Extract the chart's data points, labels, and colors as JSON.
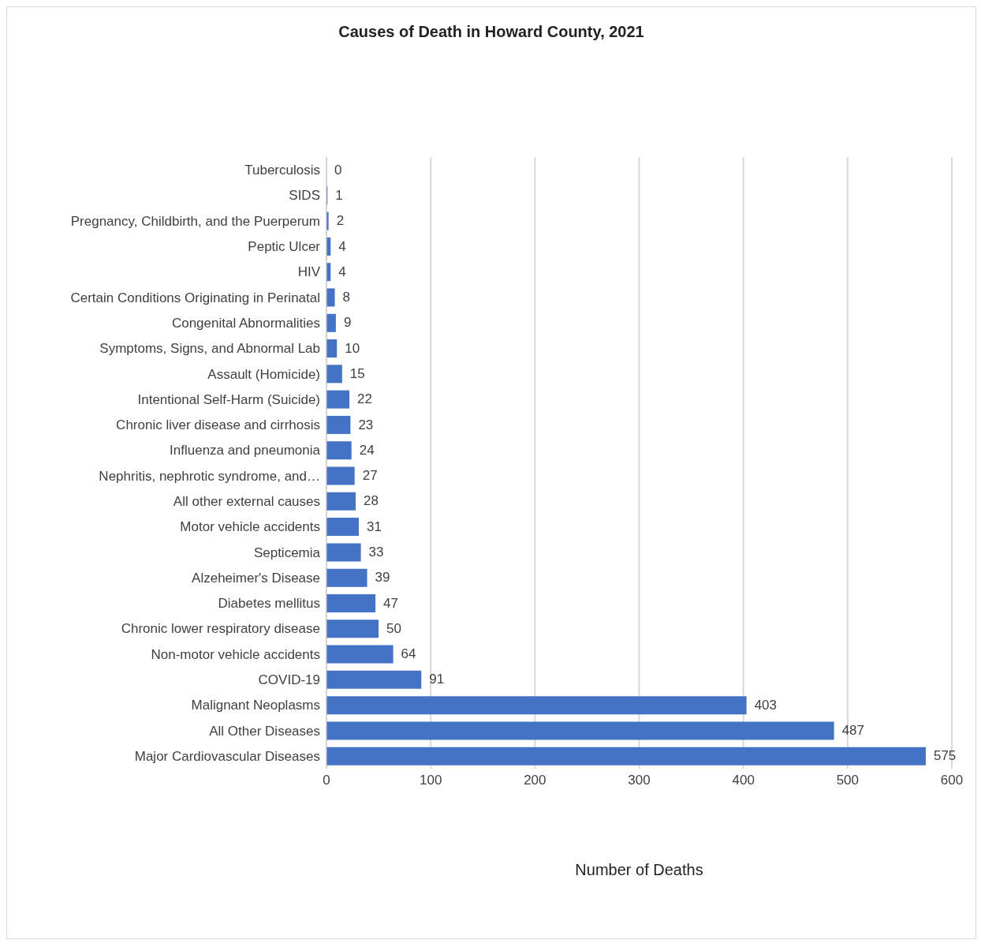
{
  "chart_data": {
    "type": "bar",
    "orientation": "horizontal",
    "title": "Causes of Death in Howard County, 2021",
    "xlabel": "Number of Deaths",
    "categories": [
      "Tuberculosis",
      "SIDS",
      "Pregnancy, Childbirth, and the Puerperum",
      "Peptic Ulcer",
      "HIV",
      "Certain Conditions Originating in Perinatal",
      "Congenital Abnormalities",
      "Symptoms, Signs, and Abnormal Lab",
      "Assault (Homicide)",
      "Intentional Self-Harm (Suicide)",
      "Chronic liver disease and cirrhosis",
      "Influenza and pneumonia",
      "Nephritis, nephrotic syndrome, and…",
      "All other external causes",
      "Motor vehicle accidents",
      "Septicemia",
      "Alzeheimer's Disease",
      "Diabetes mellitus",
      "Chronic lower respiratory disease",
      "Non-motor vehicle accidents",
      "COVID-19",
      "Malignant Neoplasms",
      "All Other Diseases",
      "Major Cardiovascular Diseases"
    ],
    "values": [
      0,
      1,
      2,
      4,
      4,
      8,
      9,
      10,
      15,
      22,
      23,
      24,
      27,
      28,
      31,
      33,
      39,
      47,
      50,
      64,
      91,
      403,
      487,
      575
    ],
    "color": "#4472c4",
    "xlim": [
      0,
      600
    ],
    "xticks": [
      0,
      100,
      200,
      300,
      400,
      500,
      600
    ],
    "grid": "x",
    "data_labels": true,
    "legend": false
  }
}
